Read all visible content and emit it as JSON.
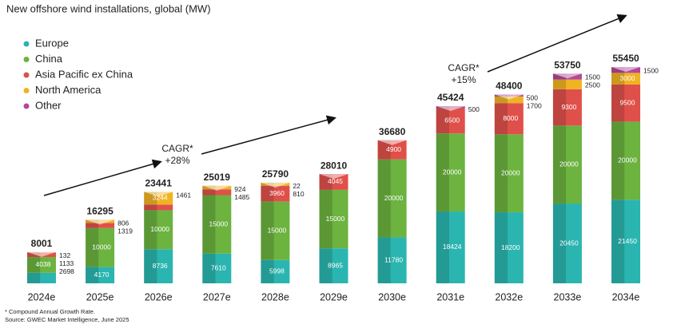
{
  "chart_data": {
    "type": "stacked_bar",
    "title": "New offshore wind installations, global (MW)",
    "categories": [
      "2024e",
      "2025e",
      "2026e",
      "2027e",
      "2028e",
      "2029e",
      "2030e",
      "2031e",
      "2032e",
      "2033e",
      "2034e"
    ],
    "series": [
      {
        "name": "Europe",
        "color": "#2bb5b0",
        "values": [
          2698,
          4170,
          8736,
          7610,
          5998,
          8965,
          11780,
          18424,
          18200,
          20450,
          21450
        ]
      },
      {
        "name": "China",
        "color": "#6cb33f",
        "values": [
          4038,
          10000,
          10000,
          15000,
          15000,
          15000,
          20000,
          20000,
          20000,
          20000,
          20000
        ]
      },
      {
        "name": "Asia Pacific ex China",
        "color": "#e0504a",
        "values": [
          1133,
          1319,
          1461,
          1485,
          3960,
          4045,
          4900,
          6500,
          8000,
          9300,
          9500
        ]
      },
      {
        "name": "North America",
        "color": "#f0b323",
        "values": [
          132,
          806,
          3244,
          924,
          810,
          null,
          null,
          null,
          1700,
          2500,
          3000
        ]
      },
      {
        "name": "Other",
        "color": "#b5479a",
        "values": [
          null,
          null,
          null,
          null,
          22,
          null,
          null,
          500,
          500,
          1500,
          1500
        ]
      }
    ],
    "totals": [
      8001,
      16295,
      23441,
      25019,
      25790,
      28010,
      36680,
      45424,
      48400,
      53750,
      55450
    ],
    "annotations": [
      "CAGR*",
      "+28%",
      "CAGR*",
      "+15%"
    ],
    "footnotes": [
      "* Compound Annual Growth Rate.",
      "Source: GWEC Market Intelligence, June 2025"
    ]
  }
}
